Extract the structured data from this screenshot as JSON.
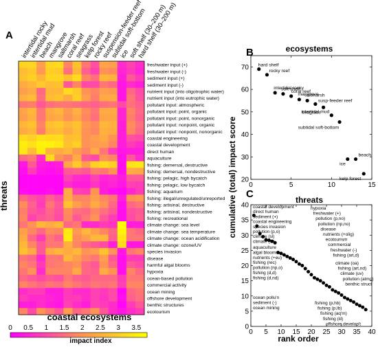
{
  "panels": {
    "a": "A",
    "b": "B",
    "c": "C"
  },
  "heatmap": {
    "xlabel": "coastal ecosystems",
    "ylabel": "threats",
    "columns": [
      "intertidal rocky",
      "intertidal mud",
      "beach",
      "mangrove",
      "saltmarsh",
      "coral reef",
      "seagrass",
      "kelp forest",
      "rocky reef",
      "suspension-feeder reef",
      "subtidal soft-bottom",
      "ice",
      "soft shelf (30–200 m)",
      "hard shelf (30–200 m)"
    ],
    "rows": [
      "freshwater input (+)",
      "freshwater input (-)",
      "sediment input (+)",
      "sediment input (-)",
      "nutrient input (into oligotrophic water)",
      "nutrient input (into eutrophic water)",
      "pollutant input: atmospheric",
      "pollutant input: point, organic",
      "pollutant input: point, nonorganic",
      "pollutant input: nonpoint, organic",
      "pollutant input: nonpoint, nonorganic",
      "coastal engineering",
      "coastal development",
      "direct human",
      "aquaculture",
      "fishing: demersal, destructive",
      "fishing: demersal, nondestructive",
      "fishing: pelagic, high bycatch",
      "fishing: pelagic, low bycatch",
      "fishing: aquarium",
      "fishing: illegal/unregulated/unreported",
      "fishing: artisinal, destructive",
      "fishing: artisinal, nondestructive",
      "fishing: recreational",
      "climate change: sea level",
      "climate change: sea temperature",
      "climate change: ocean acidification",
      "climate change: ozone/UV",
      "species invasion",
      "disease",
      "harmful algal blooms",
      "hypoxia",
      "ocean-based pollution",
      "commercial activity",
      "ocean mining",
      "offshore development",
      "benthic structures",
      "ecotourism"
    ],
    "colorbar": {
      "title": "impact index",
      "ticks": [
        "0",
        "0.5",
        "1",
        "1.5",
        "2",
        "2.5",
        "3",
        "3.5"
      ],
      "min": 0,
      "max": 3.8,
      "colors": [
        "#ff00ff",
        "#ff8c5a",
        "#ffff00"
      ]
    }
  },
  "chart_data": [
    {
      "type": "heatmap",
      "panel": "A",
      "value_range": [
        0,
        3.8
      ],
      "values": [
        [
          3.1,
          3.1,
          2.2,
          3.1,
          3.2,
          1.8,
          2.8,
          1.6,
          1.1,
          2.3,
          2.2,
          0.6,
          0.9,
          0.6
        ],
        [
          2.7,
          2.9,
          2.1,
          3.0,
          2.9,
          1.5,
          2.6,
          1.3,
          0.9,
          2.0,
          1.9,
          0.5,
          0.8,
          0.5
        ],
        [
          2.8,
          3.0,
          2.6,
          3.1,
          3.1,
          2.8,
          3.2,
          1.8,
          1.5,
          2.6,
          2.5,
          0.4,
          1.2,
          0.8
        ],
        [
          2.4,
          2.6,
          2.9,
          2.7,
          2.8,
          1.2,
          1.8,
          1.0,
          1.0,
          1.6,
          1.4,
          0.3,
          0.6,
          0.4
        ],
        [
          2.2,
          2.4,
          1.4,
          2.6,
          2.6,
          3.2,
          2.9,
          2.0,
          1.8,
          2.2,
          2.1,
          0.3,
          1.4,
          1.0
        ],
        [
          2.5,
          2.7,
          1.5,
          2.7,
          2.8,
          2.4,
          3.0,
          2.2,
          1.7,
          2.4,
          2.4,
          0.3,
          1.6,
          1.1
        ],
        [
          1.6,
          1.7,
          1.2,
          1.5,
          1.6,
          1.6,
          1.5,
          1.4,
          1.3,
          1.5,
          1.6,
          1.0,
          1.5,
          1.3
        ],
        [
          2.3,
          2.6,
          1.6,
          2.4,
          2.6,
          2.1,
          2.5,
          1.9,
          1.6,
          2.4,
          2.4,
          0.5,
          1.8,
          1.4
        ],
        [
          2.2,
          2.5,
          1.6,
          2.3,
          2.4,
          2.0,
          2.3,
          1.8,
          1.5,
          2.3,
          2.3,
          0.5,
          1.7,
          1.3
        ],
        [
          2.6,
          2.8,
          1.8,
          2.8,
          2.9,
          2.6,
          2.8,
          2.1,
          1.9,
          2.6,
          2.5,
          0.4,
          1.9,
          1.5
        ],
        [
          2.4,
          2.6,
          1.7,
          2.6,
          2.7,
          2.4,
          2.7,
          2.0,
          1.8,
          2.5,
          2.4,
          0.4,
          1.8,
          1.4
        ],
        [
          3.2,
          3.0,
          3.3,
          3.2,
          3.2,
          2.7,
          2.8,
          2.0,
          2.2,
          2.4,
          2.0,
          0.4,
          1.1,
          1.0
        ],
        [
          3.5,
          3.3,
          3.6,
          3.6,
          3.4,
          2.8,
          3.0,
          2.0,
          2.1,
          2.2,
          1.8,
          0.4,
          0.8,
          0.6
        ],
        [
          3.4,
          2.7,
          3.5,
          2.5,
          2.4,
          2.6,
          2.1,
          1.8,
          2.4,
          1.6,
          0.8,
          0.3,
          0.4,
          0.4
        ],
        [
          1.4,
          1.6,
          0.6,
          3.2,
          2.0,
          1.7,
          2.4,
          1.2,
          1.0,
          2.0,
          1.8,
          0.2,
          1.2,
          0.6
        ],
        [
          0.3,
          1.2,
          0.4,
          0.3,
          0.4,
          2.3,
          2.9,
          2.2,
          3.0,
          3.2,
          3.0,
          0.2,
          3.3,
          3.4
        ],
        [
          0.2,
          0.8,
          0.3,
          0.2,
          0.3,
          1.2,
          1.3,
          1.2,
          1.7,
          1.6,
          2.0,
          0.2,
          2.4,
          2.3
        ],
        [
          0.1,
          0.1,
          0.1,
          0.1,
          0.1,
          0.9,
          0.6,
          0.5,
          0.9,
          0.5,
          0.6,
          0.4,
          1.2,
          1.2
        ],
        [
          0.1,
          0.1,
          0.1,
          0.1,
          0.1,
          0.6,
          0.4,
          0.4,
          0.7,
          0.4,
          0.5,
          0.3,
          0.9,
          0.8
        ],
        [
          0.2,
          0.1,
          0.1,
          0.2,
          0.1,
          2.4,
          0.9,
          0.8,
          2.0,
          0.4,
          0.2,
          0.1,
          0.5,
          0.8
        ],
        [
          1.4,
          1.1,
          0.9,
          1.3,
          1.0,
          2.4,
          1.8,
          1.8,
          2.2,
          1.8,
          1.6,
          0.4,
          2.0,
          2.1
        ],
        [
          1.9,
          1.3,
          0.8,
          1.6,
          1.2,
          2.8,
          2.2,
          1.9,
          2.4,
          2.0,
          1.4,
          0.2,
          1.4,
          1.6
        ],
        [
          1.7,
          1.2,
          1.0,
          1.4,
          1.1,
          1.9,
          1.5,
          1.4,
          1.8,
          1.5,
          1.2,
          0.2,
          1.1,
          1.2
        ],
        [
          1.8,
          0.9,
          1.2,
          1.3,
          1.0,
          1.8,
          1.2,
          1.6,
          2.0,
          1.2,
          0.8,
          0.2,
          1.0,
          1.3
        ],
        [
          1.6,
          2.0,
          2.6,
          2.4,
          2.6,
          1.4,
          1.6,
          0.6,
          0.6,
          0.8,
          0.7,
          3.8,
          0.4,
          0.4
        ],
        [
          2.2,
          1.8,
          1.4,
          1.9,
          1.8,
          3.4,
          2.1,
          2.6,
          2.2,
          1.8,
          1.4,
          3.6,
          1.6,
          1.4
        ],
        [
          2.4,
          1.4,
          0.8,
          1.6,
          1.3,
          3.5,
          1.9,
          2.2,
          2.6,
          2.6,
          1.3,
          3.4,
          1.6,
          1.6
        ],
        [
          2.6,
          1.8,
          1.2,
          1.6,
          1.6,
          2.5,
          1.8,
          1.4,
          1.2,
          1.0,
          0.4,
          3.2,
          0.3,
          0.3
        ],
        [
          2.8,
          2.4,
          1.2,
          2.4,
          2.6,
          2.4,
          2.6,
          2.0,
          2.2,
          2.8,
          2.0,
          0.3,
          1.6,
          1.8
        ],
        [
          1.6,
          1.4,
          0.6,
          1.6,
          1.6,
          2.6,
          2.2,
          1.8,
          1.6,
          2.2,
          1.2,
          0.2,
          0.8,
          0.8
        ],
        [
          1.8,
          1.6,
          0.8,
          1.6,
          1.7,
          1.8,
          2.0,
          1.4,
          1.2,
          2.0,
          1.4,
          0.2,
          1.2,
          1.0
        ],
        [
          1.6,
          2.0,
          0.6,
          1.8,
          1.8,
          1.8,
          2.4,
          1.4,
          1.3,
          2.4,
          2.0,
          0.2,
          1.8,
          1.4
        ],
        [
          1.4,
          1.2,
          1.0,
          1.2,
          1.1,
          1.6,
          1.3,
          1.2,
          1.4,
          1.4,
          1.4,
          0.8,
          1.6,
          1.6
        ],
        [
          1.8,
          1.6,
          1.4,
          1.6,
          1.5,
          1.8,
          1.6,
          1.4,
          1.6,
          1.5,
          1.6,
          0.9,
          1.8,
          1.8
        ],
        [
          0.6,
          0.8,
          0.8,
          0.4,
          0.4,
          0.8,
          0.6,
          0.6,
          0.9,
          0.8,
          1.0,
          0.1,
          1.4,
          1.6
        ],
        [
          0.8,
          0.6,
          0.6,
          0.5,
          0.4,
          0.8,
          0.8,
          0.6,
          0.9,
          0.7,
          1.0,
          0.2,
          1.3,
          1.5
        ],
        [
          0.4,
          0.4,
          0.6,
          0.4,
          0.3,
          0.9,
          0.6,
          0.4,
          0.9,
          0.8,
          0.6,
          0.1,
          0.8,
          1.2
        ],
        [
          1.8,
          1.0,
          2.0,
          1.6,
          1.2,
          2.2,
          1.4,
          1.6,
          2.0,
          1.2,
          0.6,
          0.3,
          0.6,
          0.8
        ]
      ]
    },
    {
      "type": "scatter",
      "panel": "B",
      "title": "ecosystems",
      "xlim": [
        0,
        15
      ],
      "ylim": [
        20,
        75
      ],
      "xticks": [
        0,
        5,
        10,
        15
      ],
      "yticks": [
        20,
        30,
        40,
        50,
        60,
        70
      ],
      "points": [
        {
          "label": "hard shelf",
          "x": 1,
          "y": 69
        },
        {
          "label": "rocky reef",
          "x": 2,
          "y": 66.5
        },
        {
          "label": "intertidal rocky",
          "x": 3,
          "y": 58.5
        },
        {
          "label": "soft shelf",
          "x": 4,
          "y": 58
        },
        {
          "label": "coral reef",
          "x": 5,
          "y": 57
        },
        {
          "label": "mangrove",
          "x": 6,
          "y": 55.5
        },
        {
          "label": "saltmarsh",
          "x": 7,
          "y": 55
        },
        {
          "label": "susp-feeder reef",
          "x": 8,
          "y": 53.5
        },
        {
          "label": "seagrass",
          "x": 9,
          "y": 52
        },
        {
          "label": "intertidal mud",
          "x": 10,
          "y": 48.5
        },
        {
          "label": "subtidal soft-bottom",
          "x": 11,
          "y": 45.5
        },
        {
          "label": "ice",
          "x": 12,
          "y": 29
        },
        {
          "label": "beach",
          "x": 13,
          "y": 29
        },
        {
          "label": "kelp forest",
          "x": 14,
          "y": 22.5
        }
      ]
    },
    {
      "type": "scatter",
      "panel": "C",
      "title": "threats",
      "xlabel": "rank order",
      "xlim": [
        0,
        40
      ],
      "ylim": [
        0,
        40
      ],
      "xticks": [
        0,
        5,
        10,
        15,
        20,
        25,
        30,
        35,
        40
      ],
      "yticks": [
        0,
        5,
        10,
        15,
        20,
        25,
        30,
        35,
        40
      ],
      "points": [
        {
          "x": 1,
          "y": 36.5
        },
        {
          "x": 2,
          "y": 33
        },
        {
          "x": 3,
          "y": 30.5
        },
        {
          "x": 4,
          "y": 29.5
        },
        {
          "x": 5,
          "y": 28.5
        },
        {
          "x": 6,
          "y": 28.3
        },
        {
          "x": 7,
          "y": 28
        },
        {
          "x": 8,
          "y": 27.5
        },
        {
          "x": 9,
          "y": 24.3
        },
        {
          "x": 10,
          "y": 24
        },
        {
          "x": 11,
          "y": 23.5
        },
        {
          "x": 12,
          "y": 23
        },
        {
          "x": 13,
          "y": 22.5
        },
        {
          "x": 14,
          "y": 22
        },
        {
          "x": 15,
          "y": 21.3
        },
        {
          "x": 16,
          "y": 20.5
        },
        {
          "x": 17,
          "y": 20
        },
        {
          "x": 18,
          "y": 19
        },
        {
          "x": 19,
          "y": 18
        },
        {
          "x": 20,
          "y": 17
        },
        {
          "x": 21,
          "y": 16
        },
        {
          "x": 22,
          "y": 15.5
        },
        {
          "x": 23,
          "y": 15
        },
        {
          "x": 24,
          "y": 14.3
        },
        {
          "x": 25,
          "y": 13.5
        },
        {
          "x": 26,
          "y": 13
        },
        {
          "x": 27,
          "y": 12
        },
        {
          "x": 28,
          "y": 11.5
        },
        {
          "x": 29,
          "y": 11
        },
        {
          "x": 30,
          "y": 10.3
        },
        {
          "x": 31,
          "y": 9.5
        },
        {
          "x": 32,
          "y": 9
        },
        {
          "x": 33,
          "y": 8.5
        },
        {
          "x": 34,
          "y": 8
        },
        {
          "x": 35,
          "y": 7.3
        },
        {
          "x": 36,
          "y": 6.8
        },
        {
          "x": 37,
          "y": 6.3
        },
        {
          "x": 38,
          "y": 5.5
        }
      ],
      "labels_left": [
        {
          "text": "coastal development",
          "x": 1,
          "y": 36.5
        },
        {
          "text": "direct human",
          "x": 2,
          "y": 33
        },
        {
          "text": "sediment (+)",
          "x": 3,
          "y": 30.5
        },
        {
          "text": "coastal engineering",
          "x": 4,
          "y": 29.5
        },
        {
          "text": "species invasion",
          "x": 5,
          "y": 28.5
        },
        {
          "text": "pollution (p,o)",
          "x": 6,
          "y": 28.3
        },
        {
          "text": "climate (sl)",
          "x": 7,
          "y": 28
        },
        {
          "text": "climate (st)",
          "x": 8,
          "y": 27.5
        },
        {
          "text": "aquaculture",
          "x": 9,
          "y": 24.3
        },
        {
          "text": "algal blooms",
          "x": 10,
          "y": 24
        },
        {
          "text": "nutrients (+eu)",
          "x": 11,
          "y": 23.5
        },
        {
          "text": "fishing (rec)",
          "x": 12,
          "y": 23
        },
        {
          "text": "pollution (np,o)",
          "x": 13,
          "y": 22.5
        },
        {
          "text": "fishing (d,d)",
          "x": 14,
          "y": 22
        },
        {
          "text": "fishing (d,nd)",
          "x": 15,
          "y": 21.3
        },
        {
          "text": "ocean pollu'n",
          "x": 26,
          "y": 13
        },
        {
          "text": "sediment (-)",
          "x": 27,
          "y": 12
        },
        {
          "text": "ocean mining",
          "x": 28,
          "y": 11.5
        }
      ],
      "labels_right": [
        {
          "text": "hypoxia",
          "x": 16,
          "y": 20.5
        },
        {
          "text": "freshwater (+)",
          "x": 17,
          "y": 20
        },
        {
          "text": "pollution (p,no)",
          "x": 18,
          "y": 19
        },
        {
          "text": "pollution (np,no)",
          "x": 19,
          "y": 18
        },
        {
          "text": "disease",
          "x": 20,
          "y": 17
        },
        {
          "text": "nutrients (+olig)",
          "x": 21,
          "y": 16
        },
        {
          "text": "ecotourism",
          "x": 22,
          "y": 15.5
        },
        {
          "text": "commercial",
          "x": 23,
          "y": 15
        },
        {
          "text": "freshwater (-)",
          "x": 24,
          "y": 14.3
        },
        {
          "text": "fishing (art,d)",
          "x": 25,
          "y": 13.5
        },
        {
          "text": "climate (oa)",
          "x": 29,
          "y": 11
        },
        {
          "text": "fishing (art,nd)",
          "x": 30,
          "y": 10.3
        },
        {
          "text": "climate (uv)",
          "x": 31,
          "y": 9.5
        },
        {
          "text": "pollution (atmo)",
          "x": 32,
          "y": 9
        },
        {
          "text": "benthic struct",
          "x": 33,
          "y": 8.5
        }
      ],
      "labels_below": [
        {
          "text": "fishing (p,hb)",
          "x": 34,
          "y": 8
        },
        {
          "text": "fishing (p,lb)",
          "x": 35,
          "y": 7.3
        },
        {
          "text": "fishing (aq'm)",
          "x": 36,
          "y": 6.8
        },
        {
          "text": "fishing (iil)",
          "x": 37,
          "y": 6.3
        },
        {
          "text": "offshore develop't",
          "x": 38,
          "y": 5.5
        }
      ]
    }
  ],
  "shared_ylabel": "cumulative (total) impact score"
}
